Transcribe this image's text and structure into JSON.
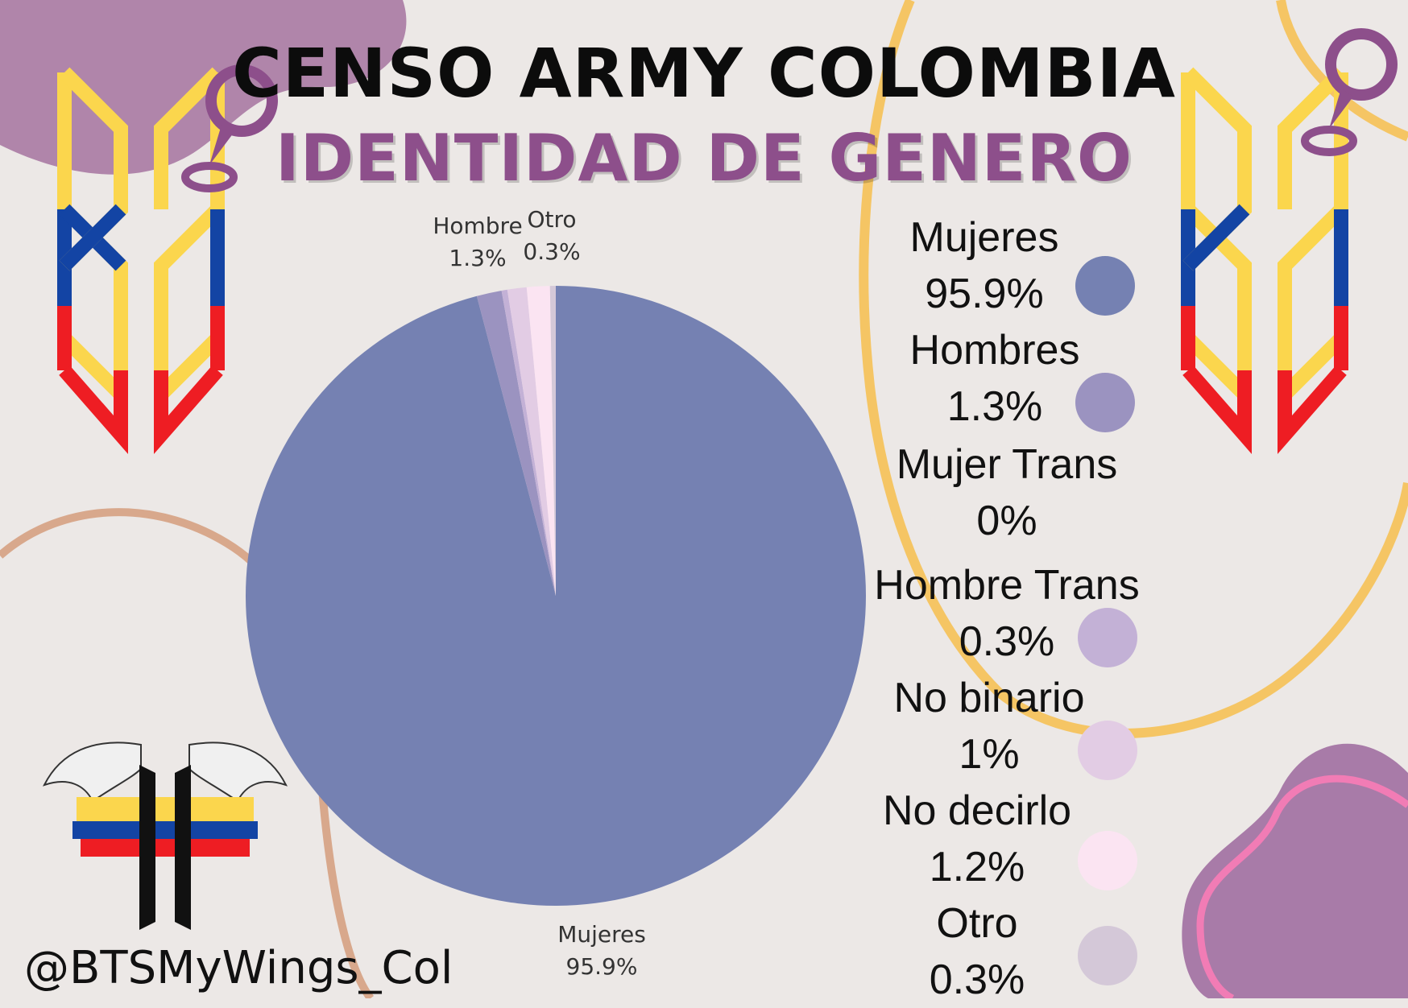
{
  "header": {
    "title": "CENSO ARMY COLOMBIA",
    "subtitle": "IDENTIDAD DE GENERO"
  },
  "handle": "@BTSMyWings_Col",
  "colors": {
    "title": "#0c0c0c",
    "subtitle": "#8d4f8b",
    "background": "#ece8e6",
    "flag_yellow": "#fbd64d",
    "flag_blue": "#1344a4",
    "flag_red": "#ee1d23"
  },
  "icons": [
    "location-pin-icon",
    "bts-logo-icon",
    "winged-logo-icon"
  ],
  "chart_data": {
    "type": "pie",
    "title": "",
    "slices": [
      {
        "name": "Mujeres",
        "value": 95.9,
        "value_label": "95.9%",
        "color": "#7581b2"
      },
      {
        "name": "Hombres",
        "value": 1.3,
        "value_label": "1.3%",
        "color": "#9b93c0"
      },
      {
        "name": "Mujer Trans",
        "value": 0,
        "value_label": "0%",
        "color": "#b8a4cf"
      },
      {
        "name": "Hombre Trans",
        "value": 0.3,
        "value_label": "0.3%",
        "color": "#c3b1d6"
      },
      {
        "name": "No binario",
        "value": 1.0,
        "value_label": "1%",
        "color": "#e2cce4"
      },
      {
        "name": "No decirlo",
        "value": 1.2,
        "value_label": "1.2%",
        "color": "#fbe4f2"
      },
      {
        "name": "Otro",
        "value": 0.3,
        "value_label": "0.3%",
        "color": "#d4c8d8"
      }
    ],
    "pie_labels": [
      {
        "name": "Mujeres",
        "value": "95.9%"
      },
      {
        "name": "Hombre",
        "value": "1.3%"
      },
      {
        "name": "Otro",
        "value": "0.3%"
      }
    ],
    "legend_placement": "right"
  }
}
